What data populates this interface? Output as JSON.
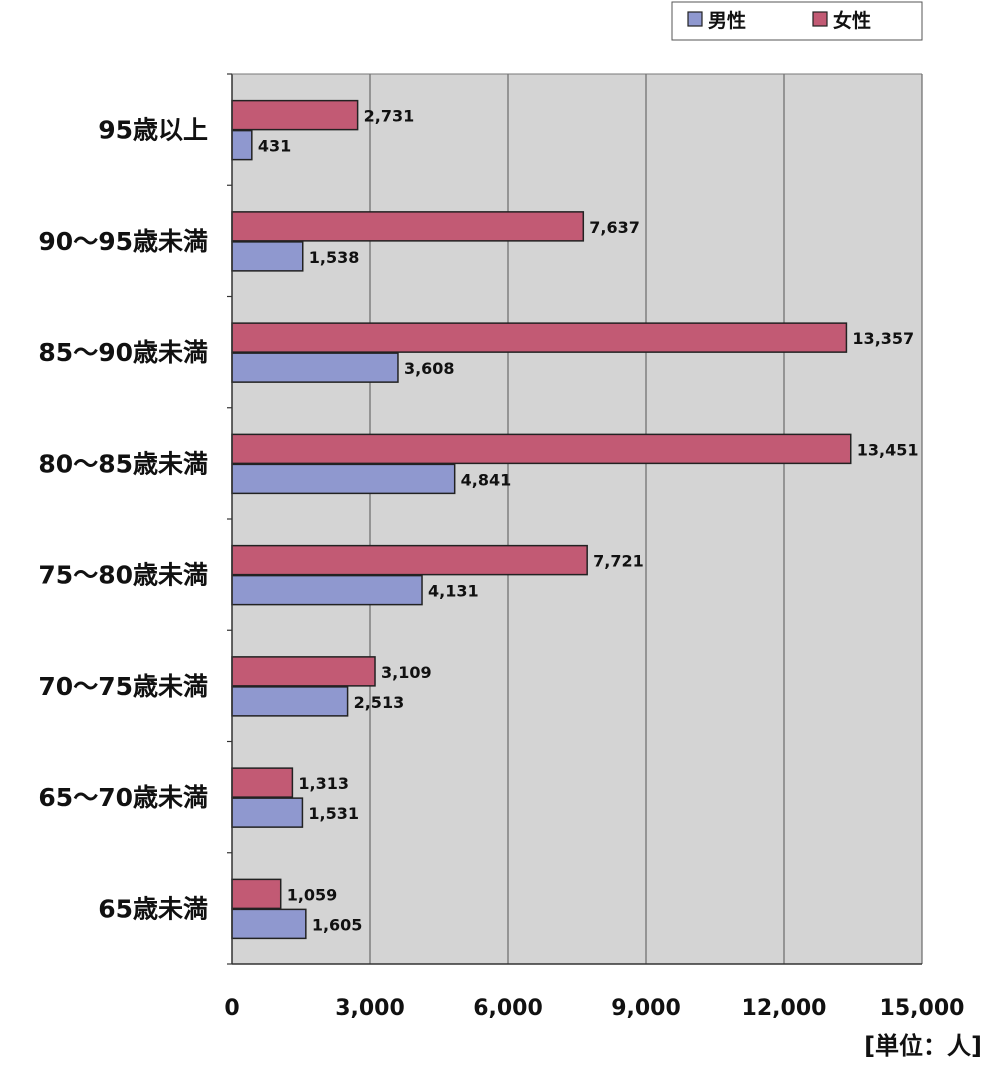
{
  "chart_data": {
    "type": "bar",
    "orientation": "horizontal",
    "categories": [
      "95歳以上",
      "90～95歳未満",
      "85～90歳未満",
      "80～85歳未満",
      "75～80歳未満",
      "70～75歳未満",
      "65～70歳未満",
      "65歳未満"
    ],
    "series": [
      {
        "name": "女性",
        "color": "#c25a74",
        "values": [
          2731,
          7637,
          13357,
          13451,
          7721,
          3109,
          1313,
          1059
        ],
        "labels": [
          "2,731",
          "7,637",
          "13,357",
          "13,451",
          "7,721",
          "3,109",
          "1,313",
          "1,059"
        ]
      },
      {
        "name": "男性",
        "color": "#8f98cf",
        "values": [
          431,
          1538,
          3608,
          4841,
          4131,
          2513,
          1531,
          1605
        ],
        "labels": [
          "431",
          "1,538",
          "3,608",
          "4,841",
          "4,131",
          "2,513",
          "1,531",
          "1,605"
        ]
      }
    ],
    "xlim": [
      0,
      15000
    ],
    "xticks": [
      0,
      3000,
      6000,
      9000,
      12000,
      15000
    ],
    "xtick_labels": [
      "0",
      "3,000",
      "6,000",
      "9,000",
      "12,000",
      "15,000"
    ],
    "unit_label": "[単位：人]",
    "legend": {
      "position": "top-right",
      "order": [
        "男性",
        "女性"
      ]
    },
    "grid": true,
    "plot_background": "#d4d4d4"
  }
}
